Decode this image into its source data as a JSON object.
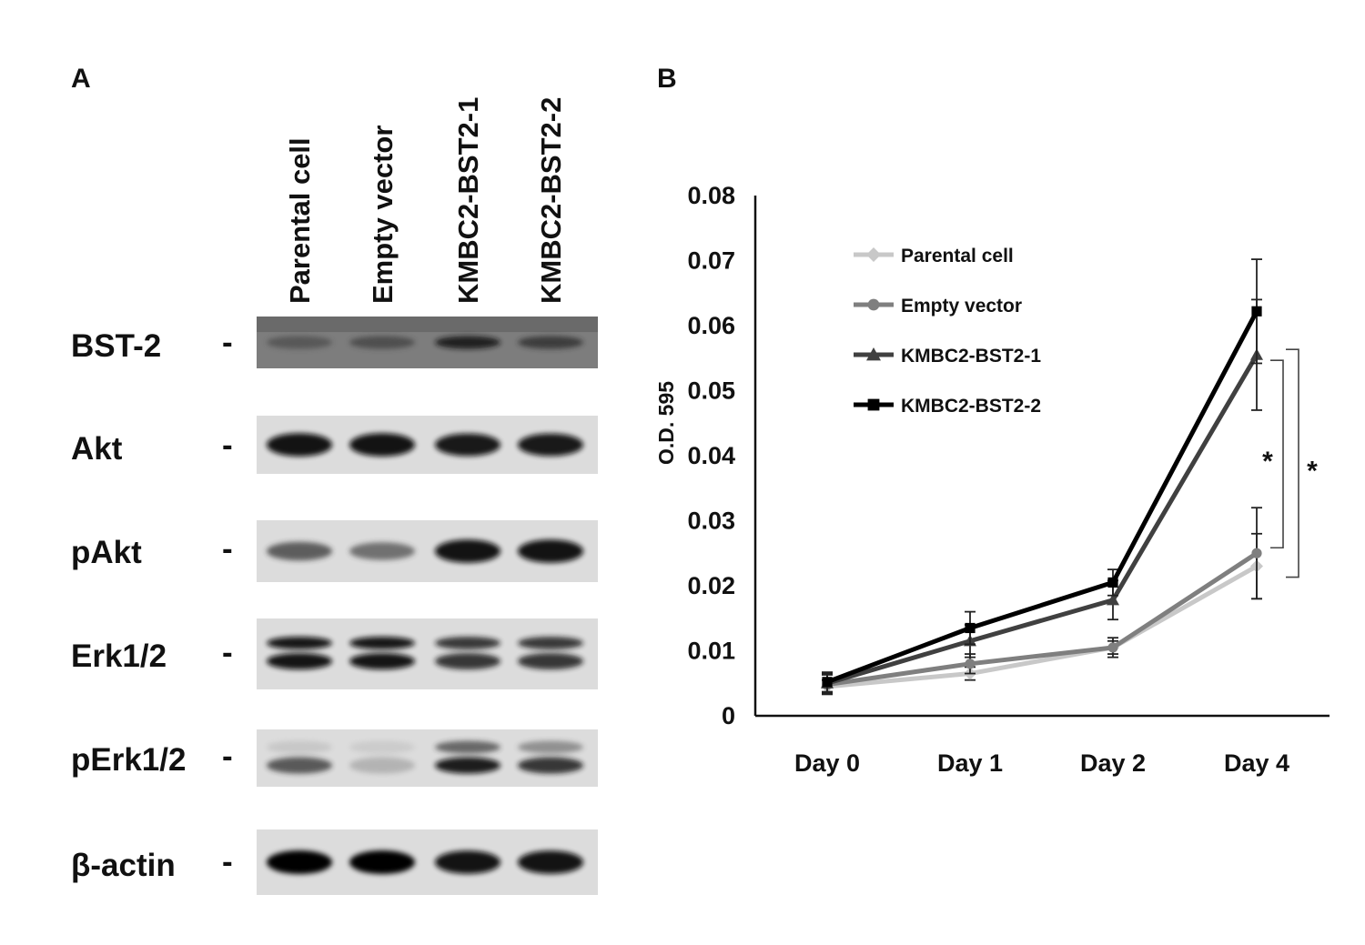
{
  "panels": {
    "a": "A",
    "b": "B"
  },
  "blot": {
    "lanes": [
      "Parental cell",
      "Empty vector",
      "KMBC2-BST2-1",
      "KMBC2-BST2-2"
    ],
    "rows": [
      {
        "label": "BST-2",
        "marker": "-",
        "intensity": [
          0.35,
          0.45,
          0.85,
          0.6
        ],
        "double": false
      },
      {
        "label": "Akt",
        "marker": "-",
        "intensity": [
          0.95,
          0.95,
          0.9,
          0.9
        ],
        "double": false
      },
      {
        "label": "pAkt",
        "marker": "-",
        "intensity": [
          0.55,
          0.45,
          0.95,
          0.95
        ],
        "double": false
      },
      {
        "label": "Erk1/2",
        "marker": "-",
        "intensity": [
          0.95,
          0.95,
          0.8,
          0.8
        ],
        "double": true
      },
      {
        "label": "pErk1/2",
        "marker": "-",
        "intensity": [
          0.65,
          0.15,
          0.9,
          0.8
        ],
        "double": true,
        "upper_intensity": [
          0.05,
          0.02,
          0.6,
          0.4
        ]
      },
      {
        "label": "β-actin",
        "marker": "-",
        "intensity": [
          1.0,
          1.0,
          0.95,
          0.95
        ],
        "double": false
      }
    ]
  },
  "chart_data": {
    "type": "line",
    "categories": [
      "Day 0",
      "Day 1",
      "Day 2",
      "Day 4"
    ],
    "ylabel": "O.D. 595",
    "ylim": [
      0,
      0.08
    ],
    "yticks": [
      "0",
      "0.01",
      "0.02",
      "0.03",
      "0.04",
      "0.05",
      "0.06",
      "0.07",
      "0.08"
    ],
    "ytick_values": [
      0,
      0.01,
      0.02,
      0.03,
      0.04,
      0.05,
      0.06,
      0.07,
      0.08
    ],
    "legend_position": "upper-left",
    "series": [
      {
        "name": "Parental cell",
        "color": "#c8c8c8",
        "marker": "diamond",
        "values": [
          0.0045,
          0.0065,
          0.0105,
          0.023
        ],
        "errors": [
          0.001,
          0.001,
          0.001,
          0.005
        ]
      },
      {
        "name": "Empty vector",
        "color": "#7f7f7f",
        "marker": "circle",
        "values": [
          0.0048,
          0.008,
          0.0105,
          0.025
        ],
        "errors": [
          0.0015,
          0.0015,
          0.0015,
          0.007
        ]
      },
      {
        "name": "KMBC2-BST2-1",
        "color": "#404040",
        "marker": "triangle",
        "values": [
          0.005,
          0.0115,
          0.0178,
          0.0555
        ],
        "errors": [
          0.0015,
          0.0025,
          0.003,
          0.0085
        ]
      },
      {
        "name": "KMBC2-BST2-2",
        "color": "#000000",
        "marker": "square",
        "values": [
          0.0052,
          0.0135,
          0.0205,
          0.0622
        ],
        "errors": [
          0.0015,
          0.0025,
          0.002,
          0.008
        ]
      }
    ],
    "annotations": [
      {
        "text": "*",
        "between": [
          "KMBC2-BST2-1",
          "Empty vector"
        ],
        "at": "Day 4"
      },
      {
        "text": "*",
        "between": [
          "KMBC2-BST2-1",
          "Parental cell"
        ],
        "at": "Day 4"
      }
    ]
  }
}
